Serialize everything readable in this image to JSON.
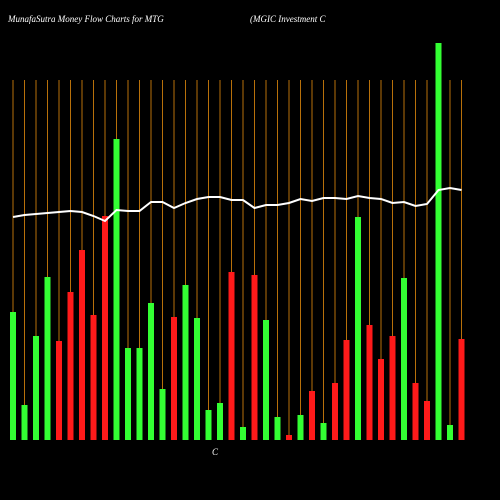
{
  "chart_data": {
    "type": "bar",
    "title": "MunafaSutra  Money Flow  Charts for MTG",
    "subtitle": "(MGIC Investment C",
    "x_axis_label": "C",
    "ylim": [
      0,
      400
    ],
    "grid": true,
    "grid_color": "#b8700a",
    "background": "#000000",
    "series": [
      {
        "name": "Money Flow",
        "type": "bar",
        "values": [
          128,
          35,
          104,
          163,
          99,
          148,
          190,
          125,
          224,
          301,
          92,
          92,
          137,
          51,
          123,
          155,
          122,
          30,
          37,
          168,
          13,
          165,
          120,
          23,
          5,
          25,
          49,
          17,
          57,
          100,
          223,
          115,
          81,
          104,
          162,
          57,
          39,
          397,
          15,
          101
        ],
        "colors": [
          "#33ff33",
          "#33ff33",
          "#33ff33",
          "#33ff33",
          "#ff1a1a",
          "#ff1a1a",
          "#ff1a1a",
          "#ff1a1a",
          "#ff1a1a",
          "#33ff33",
          "#33ff33",
          "#33ff33",
          "#33ff33",
          "#33ff33",
          "#ff1a1a",
          "#33ff33",
          "#33ff33",
          "#33ff33",
          "#33ff33",
          "#ff1a1a",
          "#33ff33",
          "#ff1a1a",
          "#33ff33",
          "#33ff33",
          "#ff1a1a",
          "#33ff33",
          "#ff1a1a",
          "#33ff33",
          "#ff1a1a",
          "#ff1a1a",
          "#33ff33",
          "#ff1a1a",
          "#ff1a1a",
          "#ff1a1a",
          "#33ff33",
          "#ff1a1a",
          "#ff1a1a",
          "#33ff33",
          "#33ff33",
          "#ff1a1a"
        ]
      },
      {
        "name": "Price",
        "type": "line",
        "color": "#ffffff",
        "values": [
          223,
          225,
          226,
          227,
          228,
          229,
          228,
          224,
          219,
          230,
          229,
          229,
          238,
          238,
          232,
          237,
          241,
          243,
          243,
          240,
          240,
          232,
          235,
          235,
          237,
          241,
          239,
          242,
          242,
          241,
          244,
          242,
          241,
          237,
          238,
          234,
          236,
          250,
          252,
          250
        ]
      }
    ]
  }
}
